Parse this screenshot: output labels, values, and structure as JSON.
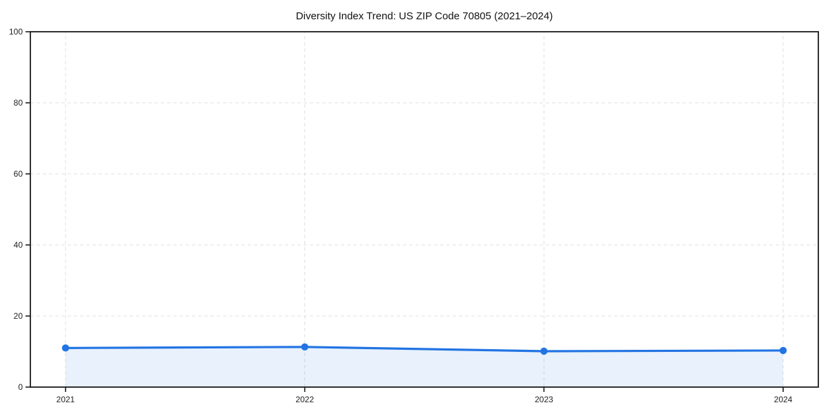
{
  "chart_data": {
    "type": "area",
    "title": "Diversity Index Trend: US ZIP Code 70805 (2021–2024)",
    "x": [
      "2021",
      "2022",
      "2023",
      "2024"
    ],
    "series": [
      {
        "name": "Diversity Index",
        "values": [
          11.0,
          11.3,
          10.1,
          10.3
        ]
      }
    ],
    "xlabel": "",
    "ylabel": "",
    "ylim": [
      0,
      100
    ],
    "yticks": [
      0,
      20,
      40,
      60,
      80,
      100
    ],
    "grid": true,
    "grid_style": "dashed",
    "legend": "none",
    "fill_opacity": 0.1,
    "marker": "circle",
    "colors": {
      "line": "#2274e3",
      "marker": "#2274e3",
      "fill_base": "#2274e3",
      "fill_rendered": "#e9f0fc",
      "grid": "#e0e0e0",
      "axis": "#1a1a1a",
      "tick_label": "#222222",
      "title": "#111111",
      "background": "#ffffff"
    }
  }
}
